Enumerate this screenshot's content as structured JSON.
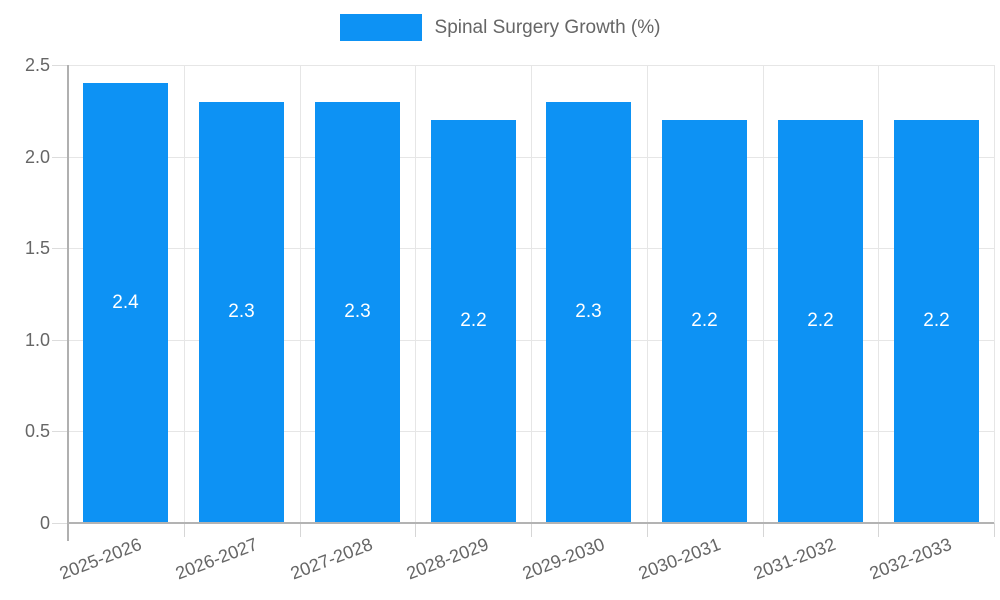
{
  "chart_data": {
    "type": "bar",
    "title": "Spinal Surgery Growth (%)",
    "categories": [
      "2025-2026",
      "2026-2027",
      "2027-2028",
      "2028-2029",
      "2029-2030",
      "2030-2031",
      "2031-2032",
      "2032-2033"
    ],
    "values": [
      2.4,
      2.3,
      2.3,
      2.2,
      2.3,
      2.2,
      2.2,
      2.2
    ],
    "xlabel": "",
    "ylabel": "",
    "ylim": [
      0,
      2.5
    ],
    "ytick_step": 0.5,
    "ytick_labels": [
      "0",
      "0.5",
      "1.0",
      "1.5",
      "2.0",
      "2.5"
    ],
    "grid": true,
    "legend_position": "top",
    "value_labels": [
      "2.4",
      "2.3",
      "2.3",
      "2.2",
      "2.3",
      "2.2",
      "2.2",
      "2.2"
    ],
    "colors": {
      "bar": "#0d92f4",
      "grid": "#e6e6e6",
      "axis_line": "#b3b3b3",
      "tick": "#d6d6d6",
      "axis_text": "#666666",
      "legend_text": "#666666",
      "value_text": "#ffffff",
      "background": "#ffffff"
    }
  }
}
